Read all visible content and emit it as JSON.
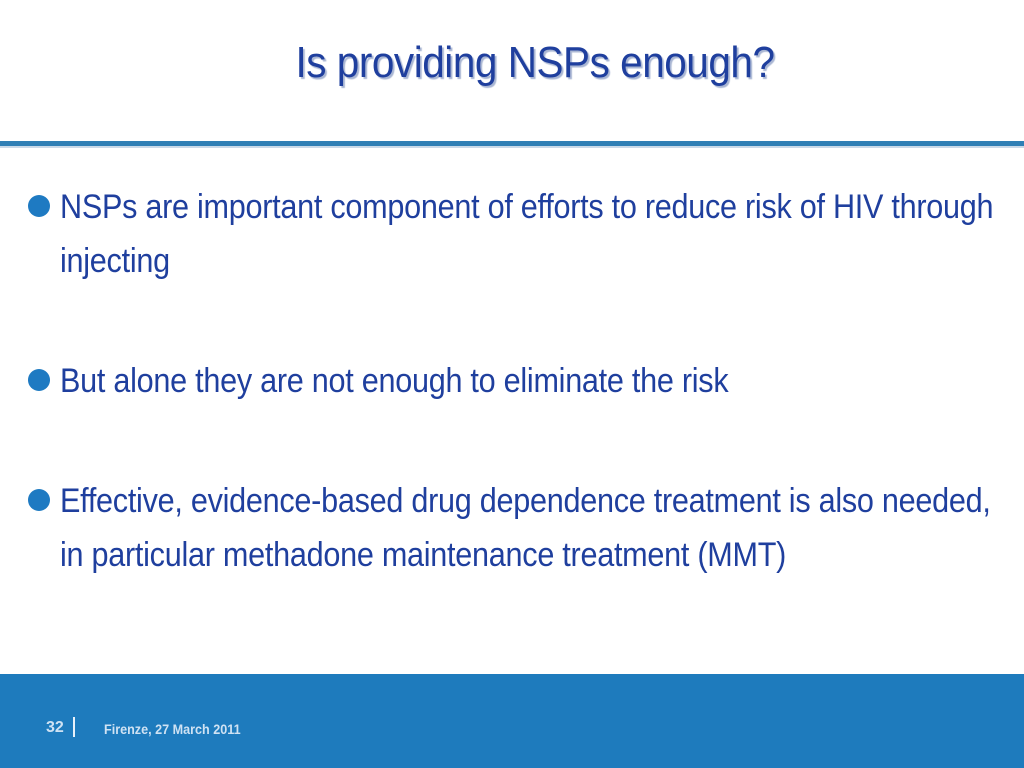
{
  "slide": {
    "title": "Is providing NSPs enough?",
    "bullets": [
      "NSPs are important component of efforts to reduce risk of HIV through injecting",
      "But alone they are not enough to eliminate the risk",
      "Effective, evidence-based drug dependence treatment is also needed, in particular methadone maintenance treatment (MMT)"
    ]
  },
  "footer": {
    "page_number": "32",
    "separator": "|",
    "text": "Firenze, 27 March 2011"
  },
  "colors": {
    "title": "#1f3f9e",
    "accent": "#1e7bbd",
    "bullet_dot": "#1e7ac2"
  }
}
